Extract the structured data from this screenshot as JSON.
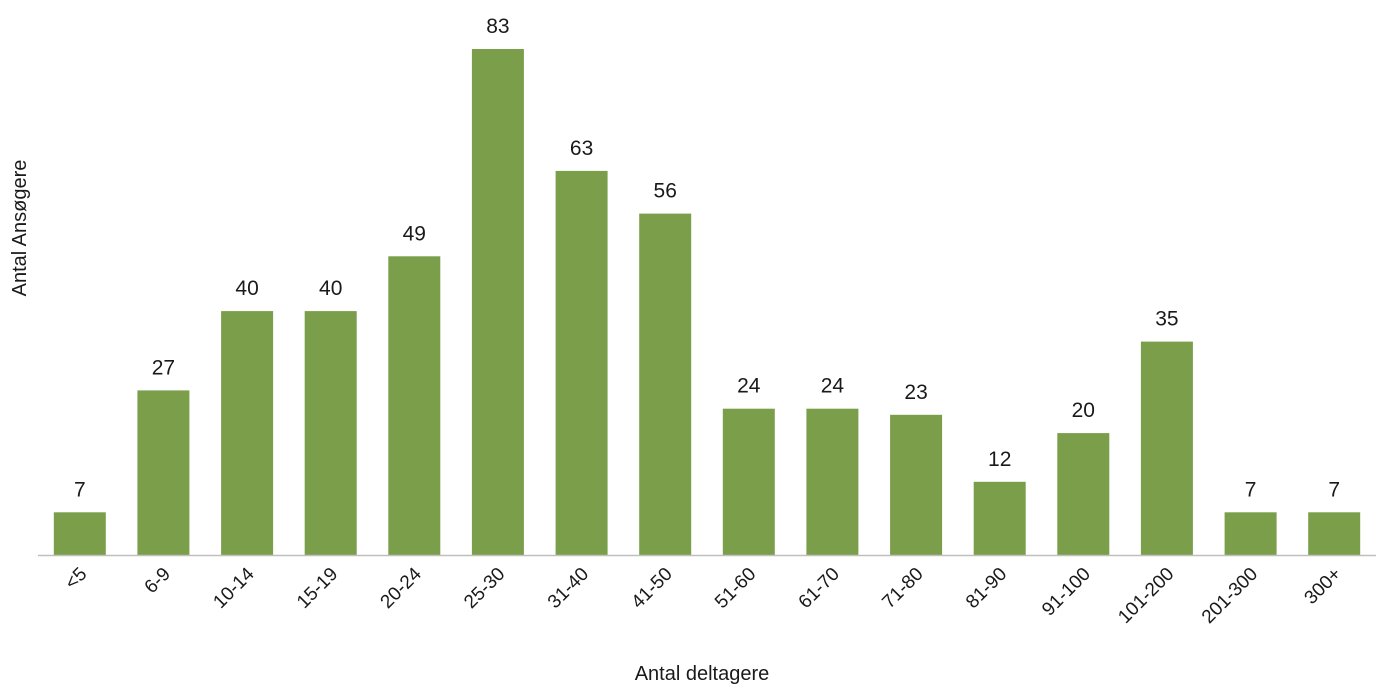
{
  "chart_data": {
    "type": "bar",
    "title": "",
    "xlabel": "Antal deltagere",
    "ylabel": "Antal Ansøgere",
    "categories": [
      "<5",
      "6-9",
      "10-14",
      "15-19",
      "20-24",
      "25-30",
      "31-40",
      "41-50",
      "51-60",
      "61-70",
      "71-80",
      "81-90",
      "91-100",
      "101-200",
      "201-300",
      "300+"
    ],
    "values": [
      7,
      27,
      40,
      40,
      49,
      83,
      63,
      56,
      24,
      24,
      23,
      12,
      20,
      35,
      7,
      7
    ],
    "ylim": [
      0,
      83
    ],
    "grid": false,
    "legend": "none",
    "bar_color": "#7a9e4a",
    "axis_color": "#bfbfbf"
  }
}
